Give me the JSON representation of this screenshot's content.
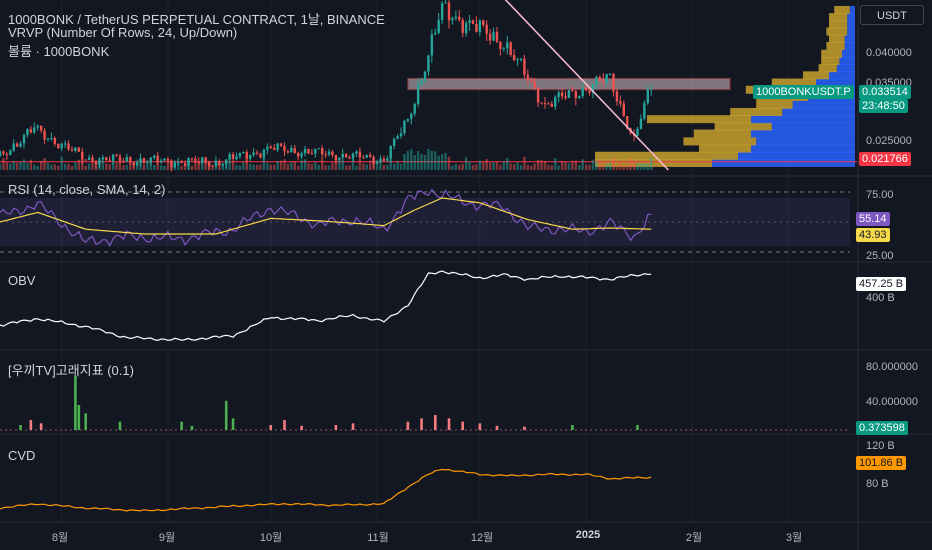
{
  "header": {
    "symbol_line": "1000BONK / TetherUS PERPETUAL CONTRACT, 1날, BINANCE",
    "vrvp_line": "VRVP (Number Of Rows, 24, Up/Down)",
    "volume_line": "볼륨 · 1000BONK",
    "currency_button": "USDT"
  },
  "colors": {
    "background": "#131722",
    "up": "#26a69a",
    "down": "#ef5350",
    "rsi_line": "#7e57c2",
    "rsi_sma": "#f7d94c",
    "obv": "#ffffff",
    "whale_up": "#4caf50",
    "whale_down": "#f77c80",
    "cvd": "#ff9800",
    "vp_up": "#2962ff",
    "vp_down": "#c8a02b",
    "trendline": "#f8bbd0"
  },
  "price_pane": {
    "axis_ticks": [
      "0.040000",
      "0.035000",
      "0.025000"
    ],
    "last_price_tag": "0.033514",
    "symbol_tag": "1000BONKUSDT.P",
    "countdown_tag": "23:48:50",
    "support_tag": "0.021766"
  },
  "rsi_pane": {
    "title": "RSI (14, close, SMA, 14, 2)",
    "axis_ticks": [
      "75.00",
      "25.00"
    ],
    "rsi_value": "55.14",
    "sma_value": "43.93"
  },
  "obv_pane": {
    "title": "OBV",
    "value_tag": "457.25 B",
    "axis_ticks": [
      "400 B"
    ]
  },
  "whale_pane": {
    "title": "[우끼TV]고래지표 (0.1)",
    "axis_ticks": [
      "80.000000",
      "40.000000"
    ],
    "value_tag": "0.373598"
  },
  "cvd_pane": {
    "title": "CVD",
    "axis_ticks": [
      "120 B",
      "80 B"
    ],
    "value_tag": "101.86 B"
  },
  "x_axis": {
    "labels": [
      "8월",
      "9월",
      "10월",
      "11월",
      "12월",
      "2025",
      "2월",
      "3월"
    ]
  },
  "chart_data": [
    {
      "type": "candlestick",
      "ylim": [
        0.0205,
        0.0465
      ],
      "x_range": [
        "2024-07-14",
        "2025-03-19"
      ],
      "segments": [
        {
          "from": "2024-07-14",
          "to": "2024-07-24",
          "open": 0.0226,
          "close": 0.0268
        },
        {
          "from": "2024-07-24",
          "to": "2024-08-08",
          "open": 0.0268,
          "close": 0.0222
        },
        {
          "from": "2024-08-08",
          "to": "2024-09-15",
          "open": 0.0222,
          "close": 0.0216
        },
        {
          "from": "2024-09-15",
          "to": "2024-10-01",
          "open": 0.0216,
          "close": 0.0238
        },
        {
          "from": "2024-10-01",
          "to": "2024-11-03",
          "open": 0.0238,
          "close": 0.0221
        },
        {
          "from": "2024-11-03",
          "to": "2024-11-10",
          "open": 0.0221,
          "close": 0.028
        },
        {
          "from": "2024-11-10",
          "to": "2024-11-20",
          "open": 0.028,
          "close": 0.045
        },
        {
          "from": "2024-11-20",
          "to": "2024-12-08",
          "open": 0.045,
          "close": 0.04
        },
        {
          "from": "2024-12-08",
          "to": "2024-12-20",
          "open": 0.04,
          "close": 0.0305
        },
        {
          "from": "2024-12-20",
          "to": "2025-01-08",
          "open": 0.0305,
          "close": 0.0345
        },
        {
          "from": "2025-01-08",
          "to": "2025-01-15",
          "open": 0.0345,
          "close": 0.025
        },
        {
          "from": "2025-01-15",
          "to": "2025-01-20",
          "open": 0.025,
          "close": 0.0335
        }
      ],
      "horizontal_lines": [
        {
          "label": "support",
          "y": 0.021766
        }
      ],
      "zones": [
        {
          "from": "2024-11-10",
          "to": "2025-02-12",
          "ymin": 0.0328,
          "ymax": 0.0345
        }
      ],
      "trendline": {
        "from": [
          "2024-12-08",
          0.0468
        ],
        "to": [
          "2025-01-25",
          0.0205
        ]
      },
      "volume_profile": [
        {
          "price": 0.0215,
          "up": 0.55,
          "down": 0.45
        },
        {
          "price": 0.0226,
          "up": 0.45,
          "down": 0.55
        },
        {
          "price": 0.0237,
          "up": 0.4,
          "down": 0.2
        },
        {
          "price": 0.0248,
          "up": 0.38,
          "down": 0.28
        },
        {
          "price": 0.026,
          "up": 0.4,
          "down": 0.22
        },
        {
          "price": 0.0271,
          "up": 0.32,
          "down": 0.22
        },
        {
          "price": 0.0282,
          "up": 0.4,
          "down": 0.4
        },
        {
          "price": 0.0293,
          "up": 0.28,
          "down": 0.2
        },
        {
          "price": 0.0304,
          "up": 0.24,
          "down": 0.14
        },
        {
          "price": 0.0316,
          "up": 0.18,
          "down": 0.2
        },
        {
          "price": 0.0327,
          "up": 0.14,
          "down": 0.28
        },
        {
          "price": 0.0338,
          "up": 0.15,
          "down": 0.17
        },
        {
          "price": 0.0349,
          "up": 0.1,
          "down": 0.1
        },
        {
          "price": 0.036,
          "up": 0.07,
          "down": 0.07
        },
        {
          "price": 0.0371,
          "up": 0.06,
          "down": 0.07
        },
        {
          "price": 0.0382,
          "up": 0.05,
          "down": 0.08
        },
        {
          "price": 0.0394,
          "up": 0.04,
          "down": 0.07
        },
        {
          "price": 0.0405,
          "up": 0.04,
          "down": 0.06
        },
        {
          "price": 0.0416,
          "up": 0.03,
          "down": 0.08
        },
        {
          "price": 0.0427,
          "up": 0.03,
          "down": 0.07
        },
        {
          "price": 0.0438,
          "up": 0.03,
          "down": 0.07
        },
        {
          "price": 0.0449,
          "up": 0.02,
          "down": 0.06
        }
      ]
    },
    {
      "type": "line",
      "name": "RSI",
      "ylim": [
        25,
        75
      ],
      "bands": [
        70,
        50,
        30
      ],
      "points": [
        [
          "2024-07-14",
          55
        ],
        [
          "2024-07-25",
          65
        ],
        [
          "2024-08-08",
          33
        ],
        [
          "2024-08-20",
          38
        ],
        [
          "2024-09-05",
          36
        ],
        [
          "2024-09-20",
          44
        ],
        [
          "2024-10-01",
          62
        ],
        [
          "2024-10-15",
          48
        ],
        [
          "2024-10-25",
          52
        ],
        [
          "2024-11-03",
          44
        ],
        [
          "2024-11-10",
          68
        ],
        [
          "2024-11-16",
          77
        ],
        [
          "2024-11-20",
          72
        ],
        [
          "2024-12-01",
          64
        ],
        [
          "2024-12-08",
          63
        ],
        [
          "2024-12-15",
          45
        ],
        [
          "2024-12-25",
          44
        ],
        [
          "2025-01-01",
          42
        ],
        [
          "2025-01-08",
          49
        ],
        [
          "2025-01-15",
          38
        ],
        [
          "2025-01-20",
          55
        ]
      ],
      "sma_points": [
        [
          "2024-07-14",
          50
        ],
        [
          "2024-07-25",
          58
        ],
        [
          "2024-08-08",
          44
        ],
        [
          "2024-08-25",
          40
        ],
        [
          "2024-09-15",
          40
        ],
        [
          "2024-10-01",
          53
        ],
        [
          "2024-10-15",
          51
        ],
        [
          "2024-10-25",
          49
        ],
        [
          "2024-11-03",
          47
        ],
        [
          "2024-11-12",
          60
        ],
        [
          "2024-11-20",
          70
        ],
        [
          "2024-12-01",
          66
        ],
        [
          "2024-12-15",
          52
        ],
        [
          "2024-12-28",
          44
        ],
        [
          "2025-01-08",
          45
        ],
        [
          "2025-01-20",
          44
        ]
      ]
    },
    {
      "type": "line",
      "name": "OBV",
      "points": [
        [
          "2024-07-14",
          372
        ],
        [
          "2024-07-25",
          383
        ],
        [
          "2024-08-08",
          370
        ],
        [
          "2024-08-20",
          352
        ],
        [
          "2024-09-05",
          348
        ],
        [
          "2024-09-20",
          355
        ],
        [
          "2024-10-01",
          385
        ],
        [
          "2024-10-15",
          380
        ],
        [
          "2024-10-25",
          388
        ],
        [
          "2024-11-03",
          378
        ],
        [
          "2024-11-10",
          405
        ],
        [
          "2024-11-16",
          455
        ],
        [
          "2024-11-20",
          460
        ],
        [
          "2024-12-01",
          449
        ],
        [
          "2024-12-08",
          454
        ],
        [
          "2024-12-15",
          447
        ],
        [
          "2024-12-25",
          452
        ],
        [
          "2025-01-08",
          447
        ],
        [
          "2025-01-20",
          457
        ]
      ]
    },
    {
      "type": "bar",
      "name": "whale",
      "ylim": [
        0,
        80
      ],
      "bars": [
        [
          "2024-07-20",
          6,
          "up"
        ],
        [
          "2024-07-23",
          12,
          "down"
        ],
        [
          "2024-07-26",
          8,
          "down"
        ],
        [
          "2024-08-05",
          65,
          "up"
        ],
        [
          "2024-08-06",
          30,
          "up"
        ],
        [
          "2024-08-08",
          20,
          "up"
        ],
        [
          "2024-08-18",
          10,
          "up"
        ],
        [
          "2024-09-05",
          10,
          "up"
        ],
        [
          "2024-09-08",
          5,
          "up"
        ],
        [
          "2024-09-18",
          35,
          "up"
        ],
        [
          "2024-09-20",
          14,
          "up"
        ],
        [
          "2024-10-01",
          6,
          "down"
        ],
        [
          "2024-10-05",
          12,
          "down"
        ],
        [
          "2024-10-10",
          5,
          "down"
        ],
        [
          "2024-10-20",
          6,
          "down"
        ],
        [
          "2024-10-25",
          8,
          "down"
        ],
        [
          "2024-11-10",
          10,
          "down"
        ],
        [
          "2024-11-14",
          14,
          "down"
        ],
        [
          "2024-11-18",
          18,
          "down"
        ],
        [
          "2024-11-22",
          14,
          "down"
        ],
        [
          "2024-11-26",
          10,
          "down"
        ],
        [
          "2024-12-01",
          8,
          "down"
        ],
        [
          "2024-12-06",
          5,
          "down"
        ],
        [
          "2024-12-14",
          4,
          "down"
        ],
        [
          "2024-12-28",
          6,
          "up"
        ],
        [
          "2025-01-16",
          6,
          "up"
        ]
      ]
    },
    {
      "type": "line",
      "name": "CVD",
      "ylim": [
        70,
        130
      ],
      "points": [
        [
          "2024-07-14",
          80
        ],
        [
          "2024-07-25",
          83
        ],
        [
          "2024-08-08",
          80
        ],
        [
          "2024-08-25",
          78
        ],
        [
          "2024-09-10",
          80
        ],
        [
          "2024-09-25",
          82
        ],
        [
          "2024-10-05",
          83
        ],
        [
          "2024-10-20",
          82
        ],
        [
          "2024-11-03",
          83
        ],
        [
          "2024-11-10",
          95
        ],
        [
          "2024-11-16",
          104
        ],
        [
          "2024-11-20",
          108
        ],
        [
          "2024-12-01",
          104
        ],
        [
          "2024-12-10",
          103
        ],
        [
          "2024-12-20",
          104
        ],
        [
          "2025-01-01",
          104
        ],
        [
          "2025-01-08",
          101
        ],
        [
          "2025-01-20",
          101.86
        ]
      ]
    }
  ]
}
